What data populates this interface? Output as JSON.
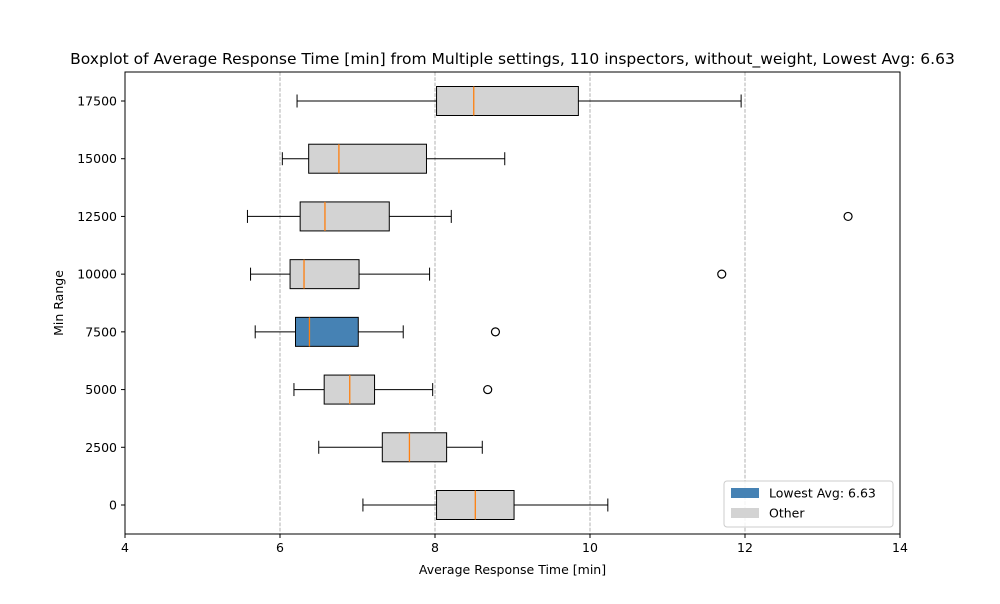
{
  "chart_data": {
    "type": "boxplot",
    "orientation": "horizontal",
    "title": "Boxplot of Average Response Time [min] from Multiple settings, 110 inspectors, without_weight, Lowest Avg: 6.63",
    "xlabel": "Average Response Time [min]",
    "ylabel": "Min Range",
    "xlim": [
      4,
      14
    ],
    "x_ticks": [
      4,
      6,
      8,
      10,
      12,
      14
    ],
    "grid": "x-dashed",
    "legend_position": "lower-right",
    "legend": [
      {
        "label": "Lowest Avg: 6.63",
        "color": "#4682b4"
      },
      {
        "label": "Other",
        "color": "#d3d3d3"
      }
    ],
    "median_color": "#ff7f0e",
    "boxes": [
      {
        "category": "0",
        "whisker_low": 7.07,
        "q1": 8.02,
        "median": 8.52,
        "q3": 9.02,
        "whisker_high": 10.23,
        "outliers": [],
        "highlight": false
      },
      {
        "category": "2500",
        "whisker_low": 6.5,
        "q1": 7.32,
        "median": 7.67,
        "q3": 8.15,
        "whisker_high": 8.61,
        "outliers": [],
        "highlight": false
      },
      {
        "category": "5000",
        "whisker_low": 6.18,
        "q1": 6.57,
        "median": 6.9,
        "q3": 7.22,
        "whisker_high": 7.97,
        "outliers": [
          8.68
        ],
        "highlight": false
      },
      {
        "category": "7500",
        "whisker_low": 5.68,
        "q1": 6.2,
        "median": 6.38,
        "q3": 7.01,
        "whisker_high": 7.59,
        "outliers": [
          8.78
        ],
        "highlight": true
      },
      {
        "category": "10000",
        "whisker_low": 5.62,
        "q1": 6.13,
        "median": 6.31,
        "q3": 7.02,
        "whisker_high": 7.93,
        "outliers": [
          11.7
        ],
        "highlight": false
      },
      {
        "category": "12500",
        "whisker_low": 5.58,
        "q1": 6.26,
        "median": 6.58,
        "q3": 7.41,
        "whisker_high": 8.21,
        "outliers": [
          13.33
        ],
        "highlight": false
      },
      {
        "category": "15000",
        "whisker_low": 6.03,
        "q1": 6.37,
        "median": 6.76,
        "q3": 7.89,
        "whisker_high": 8.9,
        "outliers": [],
        "highlight": false
      },
      {
        "category": "17500",
        "whisker_low": 6.22,
        "q1": 8.02,
        "median": 8.5,
        "q3": 9.85,
        "whisker_high": 11.95,
        "outliers": [],
        "highlight": false
      }
    ]
  }
}
